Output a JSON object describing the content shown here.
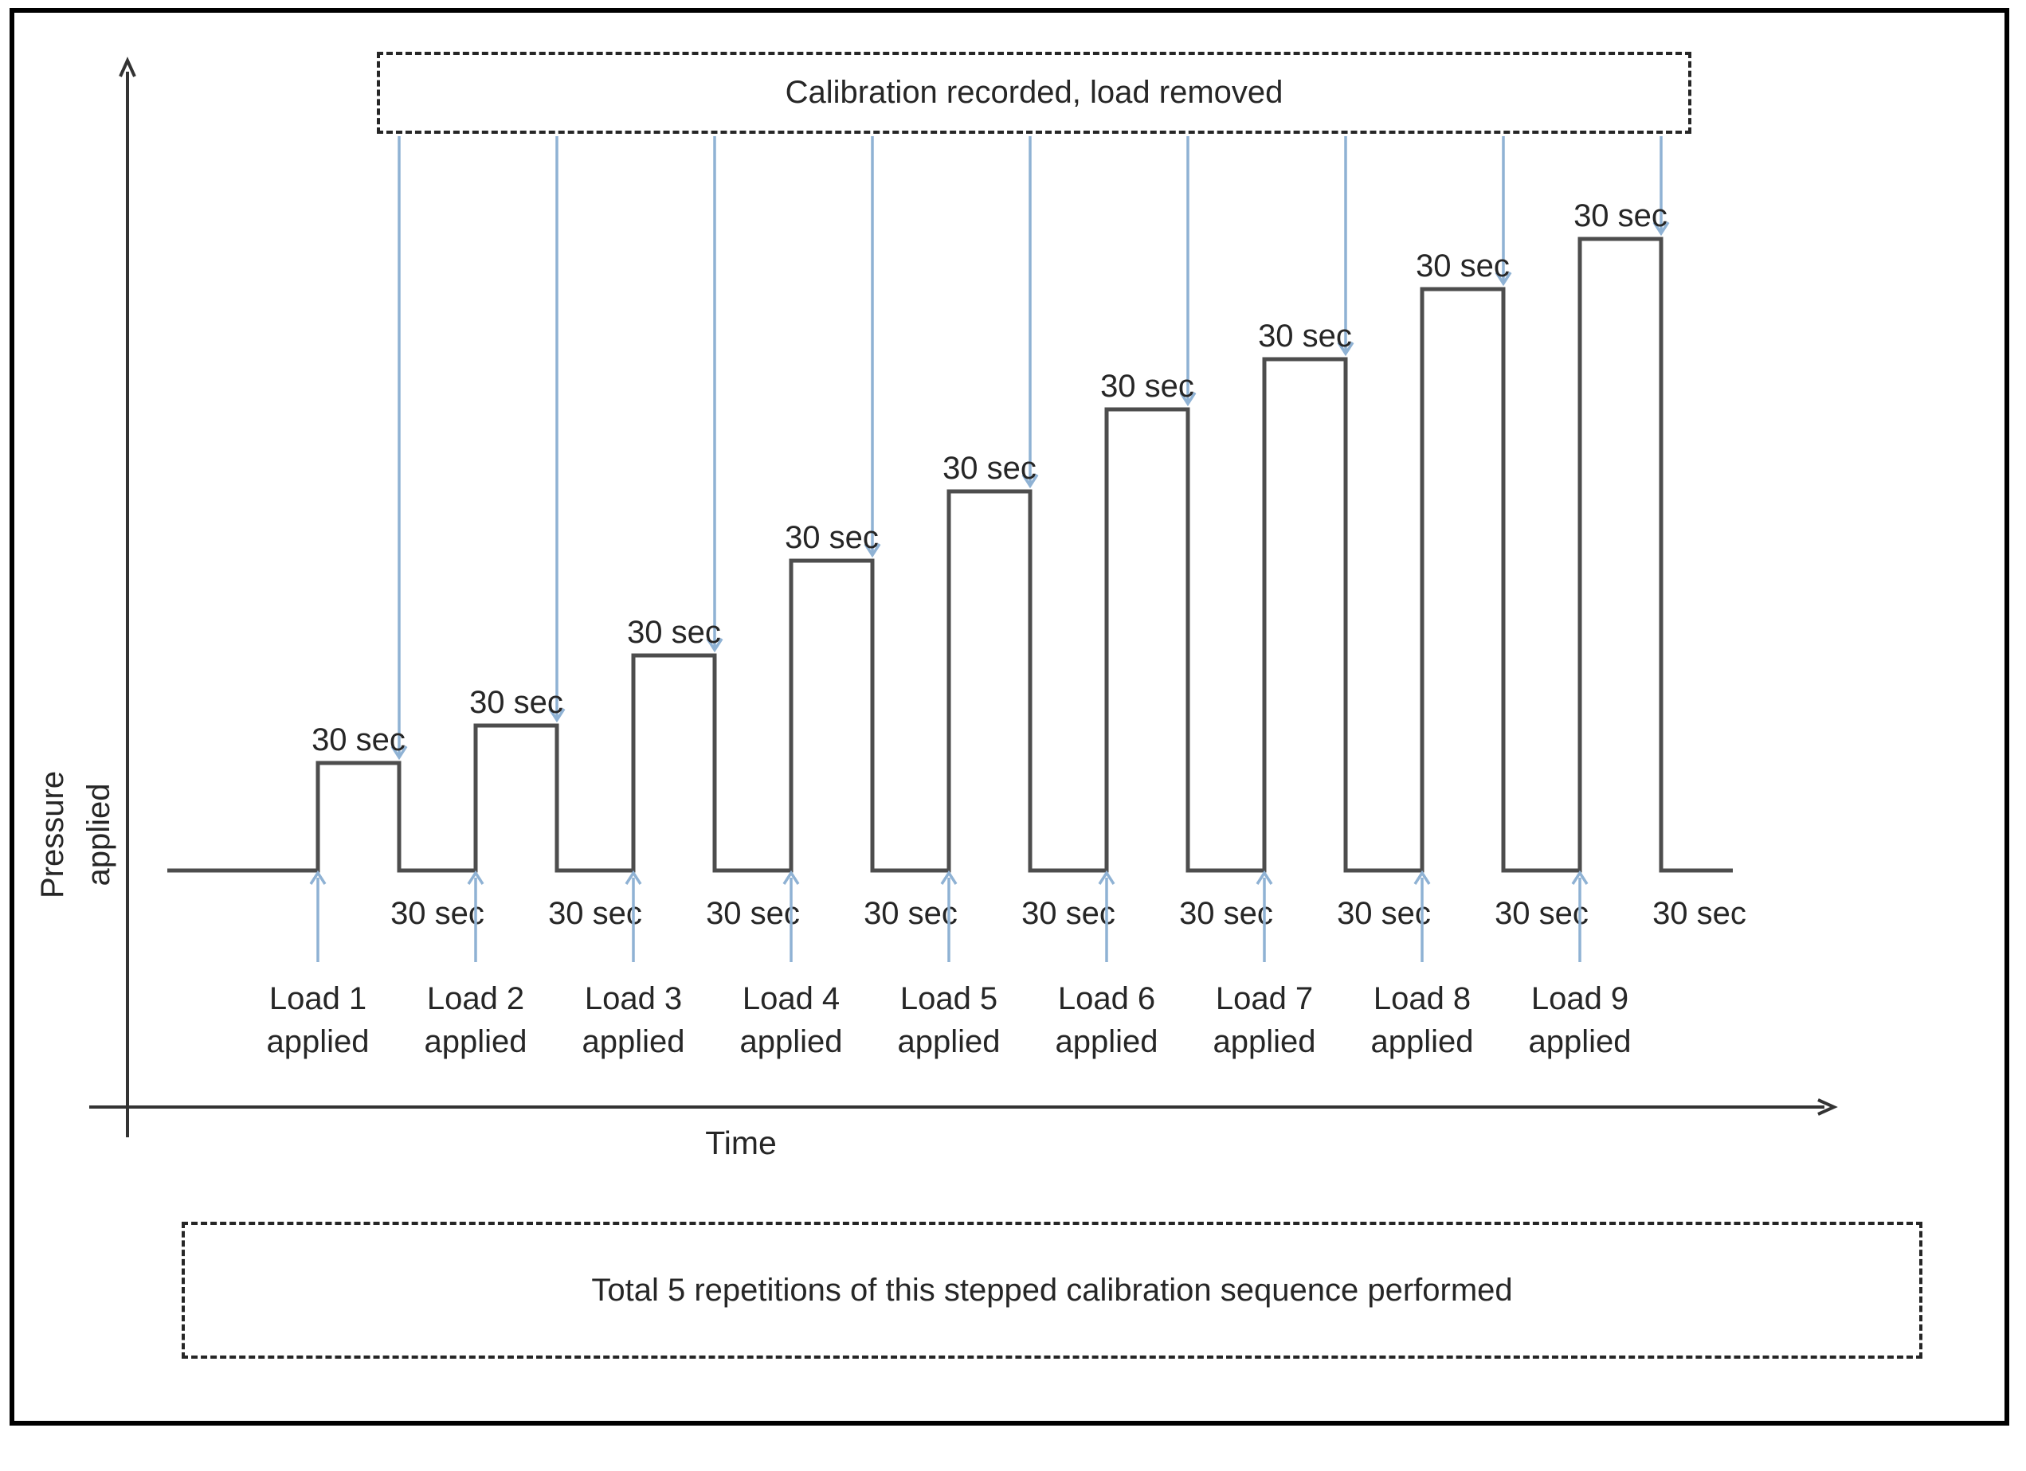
{
  "figure": {
    "y_axis_label_line1": "Pressure",
    "y_axis_label_line2": "applied"
  },
  "colors": {
    "waveform": "#4d4d4d",
    "axis": "#333333",
    "arrow_blue": "#8fb2d4",
    "text": "#262626",
    "frame": "#000000",
    "dashed_border": "#262626"
  },
  "chart_data": {
    "type": "line",
    "subtype": "stepped-calibration-sequence",
    "xlabel": "Time",
    "ylabel": "Pressure applied",
    "hold_seconds": 30,
    "rest_seconds": 30,
    "number_of_loads": 9,
    "repetitions": 5,
    "removal_note": "Calibration recorded, load removed",
    "repetitions_note": "Total 5 repetitions of this stepped calibration sequence performed",
    "steps": [
      {
        "load": 1,
        "line1": "Load 1",
        "line2": "applied",
        "hold_label": "30 sec",
        "rest_label": "30 sec",
        "relative_pressure": 0.17
      },
      {
        "load": 2,
        "line1": "Load 2",
        "line2": "applied",
        "hold_label": "30 sec",
        "rest_label": "30 sec",
        "relative_pressure": 0.23
      },
      {
        "load": 3,
        "line1": "Load 3",
        "line2": "applied",
        "hold_label": "30 sec",
        "rest_label": "30 sec",
        "relative_pressure": 0.34
      },
      {
        "load": 4,
        "line1": "Load 4",
        "line2": "applied",
        "hold_label": "30 sec",
        "rest_label": "30 sec",
        "relative_pressure": 0.49
      },
      {
        "load": 5,
        "line1": "Load 5",
        "line2": "applied",
        "hold_label": "30 sec",
        "rest_label": "30 sec",
        "relative_pressure": 0.6
      },
      {
        "load": 6,
        "line1": "Load 6",
        "line2": "applied",
        "hold_label": "30 sec",
        "rest_label": "30 sec",
        "relative_pressure": 0.73
      },
      {
        "load": 7,
        "line1": "Load 7",
        "line2": "applied",
        "hold_label": "30 sec",
        "rest_label": "30 sec",
        "relative_pressure": 0.81
      },
      {
        "load": 8,
        "line1": "Load 8",
        "line2": "applied",
        "hold_label": "30 sec",
        "rest_label": "30 sec",
        "relative_pressure": 0.92
      },
      {
        "load": 9,
        "line1": "Load 9",
        "line2": "applied",
        "hold_label": "30 sec",
        "rest_label": "30 sec",
        "relative_pressure": 1.0
      }
    ]
  }
}
